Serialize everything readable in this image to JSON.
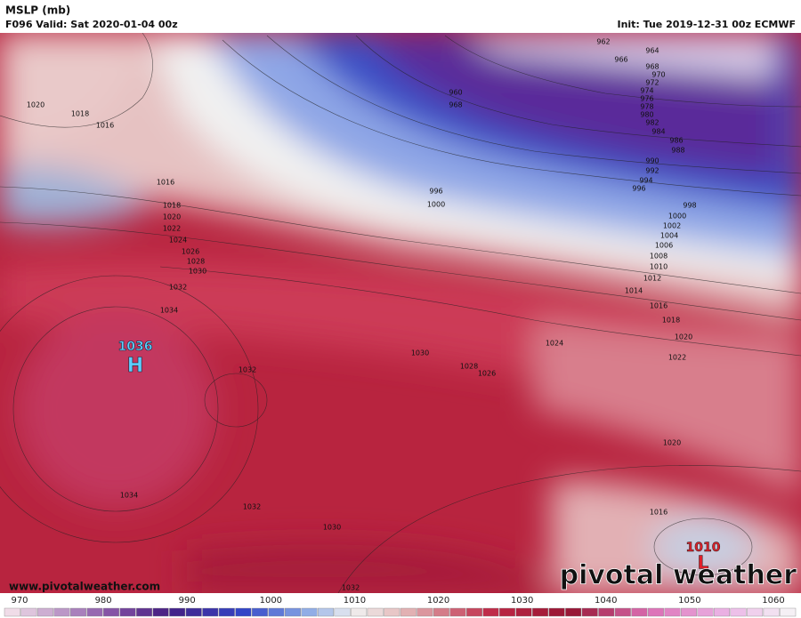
{
  "header": {
    "title": "MSLP (mb)",
    "valid": "F096 Valid: Sat 2020-01-04 00z",
    "init": "Init: Tue 2019-12-31 00z ECMWF"
  },
  "map": {
    "high": {
      "value": "1036",
      "symbol": "H"
    },
    "low": {
      "value": "1010",
      "symbol": "L"
    },
    "isobar_labels": [
      962,
      964,
      966,
      968,
      970,
      972,
      974,
      976,
      978,
      980,
      982,
      984,
      986,
      988,
      990,
      992,
      994,
      996,
      998,
      1000,
      1002,
      1004,
      1006,
      1008,
      1010,
      1012,
      1014,
      1016,
      1018,
      1020,
      1022,
      1024,
      1026,
      1028,
      1030,
      1032,
      1034,
      960,
      968,
      996,
      1000,
      1016,
      1018,
      1020,
      1022,
      1024,
      1026,
      1028,
      1030,
      1032,
      1020,
      1018,
      1016,
      1034,
      1032,
      1030,
      1020,
      1016,
      1032
    ]
  },
  "footer": {
    "website": "www.pivotalweather.com",
    "logo": "pivotal weather"
  },
  "colorbar": {
    "ticks": [
      970,
      980,
      990,
      1000,
      1010,
      1020,
      1030,
      1040,
      1050,
      1060
    ]
  }
}
